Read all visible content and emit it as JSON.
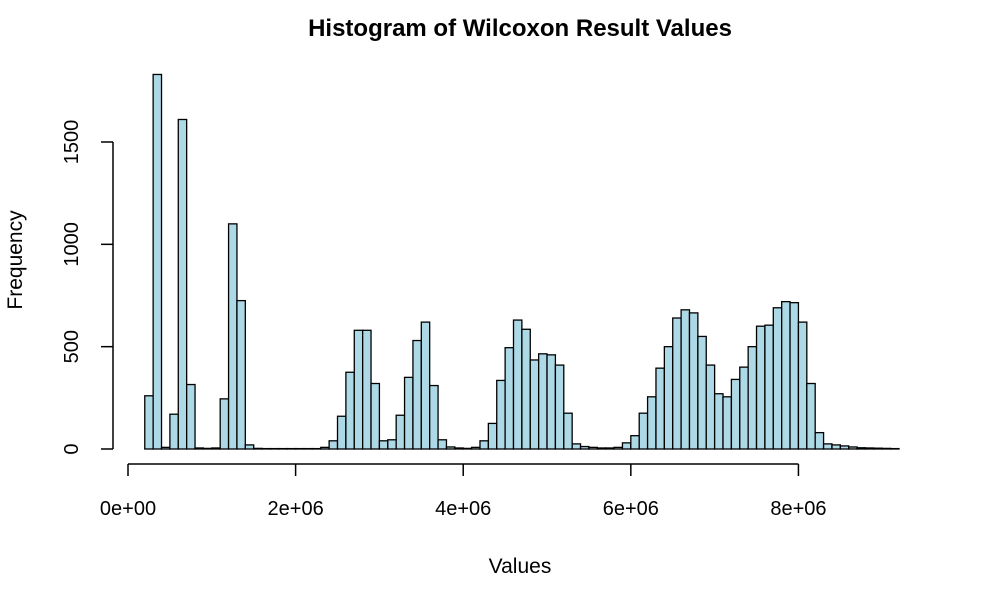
{
  "chart_data": {
    "type": "bar",
    "title": "Histogram of Wilcoxon Result Values",
    "xlabel": "Values",
    "ylabel": "Frequency",
    "bar_color": "#add8e6",
    "edge_color": "#000000",
    "bin_width": 100000,
    "bin_start": 200000,
    "xlim": [
      0,
      9200000
    ],
    "ylim": [
      0,
      1900
    ],
    "x_ticks": [
      0,
      2000000,
      4000000,
      6000000,
      8000000
    ],
    "x_tick_labels": [
      "0e+00",
      "2e+06",
      "4e+06",
      "6e+06",
      "8e+06"
    ],
    "y_ticks": [
      0,
      500,
      1000,
      1500
    ],
    "y_tick_labels": [
      "0",
      "500",
      "1000",
      "1500"
    ],
    "values": [
      260,
      1830,
      8,
      170,
      1610,
      315,
      5,
      3,
      5,
      245,
      1100,
      725,
      20,
      3,
      2,
      2,
      2,
      2,
      2,
      2,
      2,
      8,
      40,
      160,
      375,
      580,
      580,
      320,
      40,
      45,
      165,
      350,
      530,
      620,
      310,
      45,
      10,
      5,
      3,
      8,
      40,
      125,
      335,
      495,
      630,
      585,
      435,
      465,
      460,
      410,
      175,
      25,
      12,
      8,
      5,
      5,
      8,
      30,
      65,
      175,
      255,
      395,
      500,
      640,
      680,
      665,
      550,
      410,
      270,
      255,
      340,
      400,
      500,
      600,
      605,
      690,
      720,
      715,
      620,
      320,
      80,
      25,
      20,
      15,
      10,
      6,
      5,
      4,
      3,
      2
    ]
  }
}
